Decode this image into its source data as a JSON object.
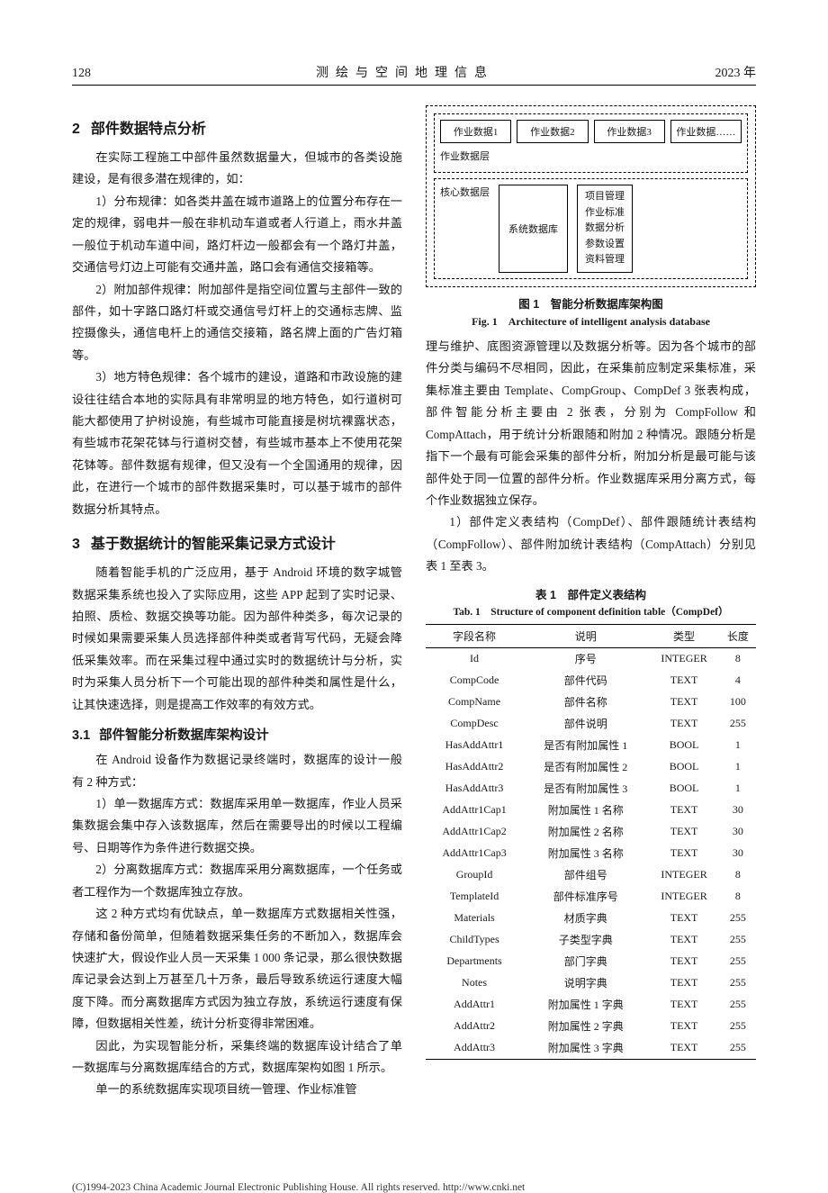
{
  "header": {
    "page": "128",
    "journal": "测绘与空间地理信息",
    "year": "2023 年"
  },
  "sec2": {
    "num": "2",
    "title": "部件数据特点分析",
    "intro": "在实际工程施工中部件虽然数据量大，但城市的各类设施建设，是有很多潜在规律的，如：",
    "p1": "1）分布规律：如各类井盖在城市道路上的位置分布存在一定的规律，弱电井一般在非机动车道或者人行道上，雨水井盖一般位于机动车道中间，路灯杆边一般都会有一个路灯井盖，交通信号灯边上可能有交通井盖，路口会有通信交接箱等。",
    "p2": "2）附加部件规律：附加部件是指空间位置与主部件一致的部件，如十字路口路灯杆或交通信号灯杆上的交通标志牌、监控摄像头，通信电杆上的通信交接箱，路名牌上面的广告灯箱等。",
    "p3": "3）地方特色规律：各个城市的建设，道路和市政设施的建设往往结合本地的实际具有非常明显的地方特色，如行道树可能大都使用了护树设施，有些城市可能直接是树坑裸露状态，有些城市花架花钵与行道树交替，有些城市基本上不使用花架花钵等。部件数据有规律，但又没有一个全国通用的规律，因此，在进行一个城市的部件数据采集时，可以基于城市的部件数据分析其特点。"
  },
  "sec3": {
    "num": "3",
    "title": "基于数据统计的智能采集记录方式设计",
    "intro": "随着智能手机的广泛应用，基于 Android 环境的数字城管数据采集系统也投入了实际应用，这些 APP 起到了实时记录、拍照、质检、数据交换等功能。因为部件种类多，每次记录的时候如果需要采集人员选择部件种类或者背写代码，无疑会降低采集效率。而在采集过程中通过实时的数据统计与分析，实时为采集人员分析下一个可能出现的部件种类和属性是什么，让其快速选择，则是提高工作效率的有效方式。",
    "sub31_num": "3.1",
    "sub31_title": "部件智能分析数据库架构设计",
    "s31_p1": "在 Android 设备作为数据记录终端时，数据库的设计一般有 2 种方式：",
    "s31_p2": "1）单一数据库方式：数据库采用单一数据库，作业人员采集数据会集中存入该数据库，然后在需要导出的时候以工程编号、日期等作为条件进行数据交换。",
    "s31_p3": "2）分离数据库方式：数据库采用分离数据库，一个任务或者工程作为一个数据库独立存放。",
    "s31_p4": "这 2 种方式均有优缺点，单一数据库方式数据相关性强，存储和备份简单，但随着数据采集任务的不断加入，数据库会快速扩大，假设作业人员一天采集 1 000 条记录，那么很快数据库记录会达到上万甚至几十万条，最后导致系统运行速度大幅度下降。而分离数据库方式因为独立存放，系统运行速度有保障，但数据相关性差，统计分析变得非常困难。",
    "s31_p5": "因此，为实现智能分析，采集终端的数据库设计结合了单一数据库与分离数据库结合的方式，数据库架构如图 1 所示。",
    "s31_p6": "单一的系统数据库实现项目统一管理、作业标准管"
  },
  "diagram": {
    "jobs": [
      "作业数据1",
      "作业数据2",
      "作业数据3",
      "作业数据……"
    ],
    "layer_jobs": "作业数据层",
    "layer_core": "核心数据层",
    "sysdb": "系统数据库",
    "funcs": [
      "项目管理",
      "作业标准",
      "数据分析",
      "参数设置",
      "资料管理"
    ]
  },
  "fig1": {
    "zh": "图 1　智能分析数据库架构图",
    "en": "Fig. 1　Architecture of intelligent analysis database"
  },
  "right_para1": "理与维护、底图资源管理以及数据分析等。因为各个城市的部件分类与编码不尽相同，因此，在采集前应制定采集标准，采集标准主要由 Template、CompGroup、CompDef 3 张表构成，部件智能分析主要由 2 张表，分别为 CompFollow 和 CompAttach，用于统计分析跟随和附加 2 种情况。跟随分析是指下一个最有可能会采集的部件分析，附加分析是最可能与该部件处于同一位置的部件分析。作业数据库采用分离方式，每个作业数据独立保存。",
  "right_para2": "1）部件定义表结构（CompDef）、部件跟随统计表结构（CompFollow）、部件附加统计表结构（CompAttach）分别见表 1 至表 3。",
  "tab1": {
    "zh": "表 1　部件定义表结构",
    "en": "Tab. 1　Structure of component definition table（CompDef）",
    "columns": [
      "字段名称",
      "说明",
      "类型",
      "长度"
    ],
    "rows": [
      [
        "Id",
        "序号",
        "INTEGER",
        "8"
      ],
      [
        "CompCode",
        "部件代码",
        "TEXT",
        "4"
      ],
      [
        "CompName",
        "部件名称",
        "TEXT",
        "100"
      ],
      [
        "CompDesc",
        "部件说明",
        "TEXT",
        "255"
      ],
      [
        "HasAddAttr1",
        "是否有附加属性 1",
        "BOOL",
        "1"
      ],
      [
        "HasAddAttr2",
        "是否有附加属性 2",
        "BOOL",
        "1"
      ],
      [
        "HasAddAttr3",
        "是否有附加属性 3",
        "BOOL",
        "1"
      ],
      [
        "AddAttr1Cap1",
        "附加属性 1 名称",
        "TEXT",
        "30"
      ],
      [
        "AddAttr1Cap2",
        "附加属性 2 名称",
        "TEXT",
        "30"
      ],
      [
        "AddAttr1Cap3",
        "附加属性 3 名称",
        "TEXT",
        "30"
      ],
      [
        "GroupId",
        "部件组号",
        "INTEGER",
        "8"
      ],
      [
        "TemplateId",
        "部件标准序号",
        "INTEGER",
        "8"
      ],
      [
        "Materials",
        "材质字典",
        "TEXT",
        "255"
      ],
      [
        "ChildTypes",
        "子类型字典",
        "TEXT",
        "255"
      ],
      [
        "Departments",
        "部门字典",
        "TEXT",
        "255"
      ],
      [
        "Notes",
        "说明字典",
        "TEXT",
        "255"
      ],
      [
        "AddAttr1",
        "附加属性 1 字典",
        "TEXT",
        "255"
      ],
      [
        "AddAttr2",
        "附加属性 2 字典",
        "TEXT",
        "255"
      ],
      [
        "AddAttr3",
        "附加属性 3 字典",
        "TEXT",
        "255"
      ]
    ]
  },
  "footer": "(C)1994-2023 China Academic Journal Electronic Publishing House. All rights reserved.   http://www.cnki.net"
}
